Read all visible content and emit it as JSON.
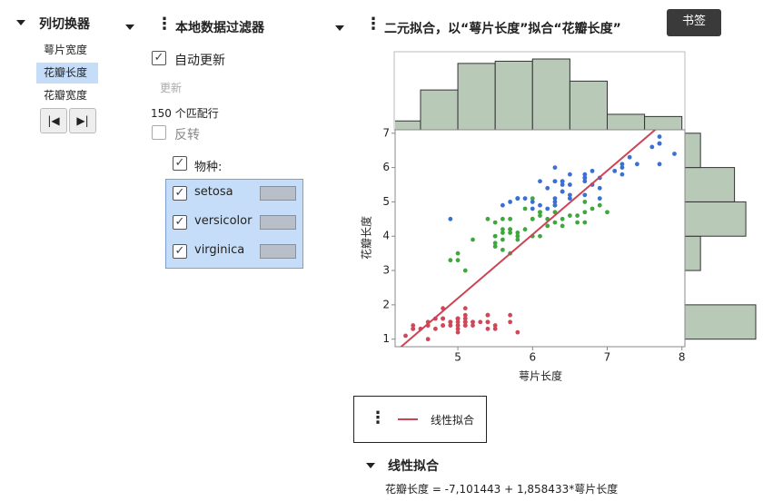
{
  "column_switcher": {
    "title": "列切换器",
    "items": [
      "萼片宽度",
      "花瓣长度",
      "花瓣宽度"
    ],
    "selected": 1
  },
  "data_filter": {
    "title": "本地数据过滤器",
    "auto_update": {
      "label": "自动更新",
      "checked": true
    },
    "update_button": "更新",
    "match_count": "150 个匹配行",
    "invert": {
      "label": "反转",
      "checked": false
    },
    "column": {
      "label": "物种:",
      "checked": true
    },
    "filter_checked": [
      true,
      true,
      true
    ]
  },
  "bookmark": "书签",
  "chart_data": {
    "type": "scatter",
    "title": "二元拟合，以“萼片长度”拟合“花瓣长度”",
    "xlabel": "萼片长度",
    "ylabel": "花瓣长度",
    "xlim": [
      4.16,
      8.04
    ],
    "ylim": [
      0.78,
      7.1
    ],
    "xticks": [
      5,
      6,
      7,
      8
    ],
    "yticks": [
      1,
      2,
      3,
      4,
      5,
      6,
      7
    ],
    "series": [
      {
        "name": "setosa",
        "color": "#d04858",
        "x": [
          5.1,
          4.9,
          4.7,
          4.6,
          5.0,
          5.4,
          4.6,
          5.0,
          4.4,
          4.9,
          5.4,
          4.8,
          4.8,
          4.3,
          5.8,
          5.7,
          5.4,
          5.1,
          5.7,
          5.1,
          5.4,
          5.1,
          4.6,
          5.1,
          4.8,
          5.0,
          5.0,
          5.2,
          5.2,
          4.7,
          4.8,
          5.4,
          5.2,
          5.5,
          4.9,
          5.0,
          5.5,
          4.9,
          4.4,
          5.1,
          5.0,
          4.5,
          4.4,
          5.0,
          5.1,
          4.8,
          5.1,
          4.6,
          5.3,
          5.0
        ],
        "y": [
          1.4,
          1.4,
          1.3,
          1.5,
          1.4,
          1.7,
          1.4,
          1.5,
          1.4,
          1.5,
          1.5,
          1.6,
          1.4,
          1.1,
          1.2,
          1.5,
          1.3,
          1.4,
          1.7,
          1.5,
          1.7,
          1.5,
          1.0,
          1.7,
          1.9,
          1.6,
          1.6,
          1.5,
          1.4,
          1.6,
          1.6,
          1.5,
          1.5,
          1.4,
          1.5,
          1.2,
          1.3,
          1.5,
          1.3,
          1.5,
          1.3,
          1.3,
          1.3,
          1.6,
          1.9,
          1.4,
          1.6,
          1.4,
          1.5,
          1.4
        ]
      },
      {
        "name": "versicolor",
        "color": "#3ea83e",
        "x": [
          7.0,
          6.4,
          6.9,
          5.5,
          6.5,
          5.7,
          6.3,
          4.9,
          6.6,
          5.2,
          5.0,
          5.9,
          6.0,
          6.1,
          5.6,
          6.7,
          5.6,
          5.8,
          6.2,
          5.6,
          5.9,
          6.1,
          6.3,
          6.1,
          6.4,
          6.6,
          6.8,
          6.7,
          6.0,
          5.7,
          5.5,
          5.5,
          5.8,
          6.0,
          5.4,
          6.0,
          6.7,
          6.3,
          5.6,
          5.5,
          5.5,
          6.1,
          5.8,
          5.0,
          5.6,
          5.7,
          5.7,
          6.2,
          5.1,
          5.7
        ],
        "y": [
          4.7,
          4.5,
          4.9,
          4.0,
          4.6,
          4.5,
          4.7,
          3.3,
          4.6,
          3.9,
          3.5,
          4.2,
          4.0,
          4.7,
          3.6,
          4.4,
          4.5,
          4.1,
          4.5,
          3.9,
          4.8,
          4.0,
          4.9,
          4.7,
          4.3,
          4.4,
          4.8,
          5.0,
          4.5,
          3.5,
          3.8,
          3.7,
          3.9,
          5.1,
          4.5,
          4.5,
          4.7,
          4.4,
          4.1,
          4.0,
          4.4,
          4.6,
          4.0,
          3.3,
          4.2,
          4.2,
          4.2,
          4.3,
          3.0,
          4.1
        ]
      },
      {
        "name": "virginica",
        "color": "#3a6fd4",
        "x": [
          6.3,
          5.8,
          7.1,
          6.3,
          6.5,
          7.6,
          4.9,
          7.3,
          6.7,
          7.2,
          6.5,
          6.4,
          6.8,
          5.7,
          5.8,
          6.4,
          6.5,
          7.7,
          7.7,
          6.0,
          6.9,
          5.6,
          7.7,
          6.3,
          6.7,
          7.2,
          6.2,
          6.1,
          6.4,
          7.2,
          7.4,
          7.9,
          6.4,
          6.3,
          6.1,
          7.7,
          6.3,
          6.4,
          6.0,
          6.9,
          6.7,
          6.9,
          5.8,
          6.8,
          6.7,
          6.7,
          6.3,
          6.5,
          6.2,
          5.9
        ],
        "y": [
          6.0,
          5.1,
          5.9,
          5.6,
          5.8,
          6.6,
          4.5,
          6.3,
          5.8,
          6.1,
          5.1,
          5.3,
          5.5,
          5.0,
          5.1,
          5.3,
          5.5,
          6.7,
          6.9,
          5.0,
          5.7,
          4.9,
          6.7,
          4.9,
          5.7,
          6.0,
          4.8,
          4.9,
          5.6,
          5.8,
          6.1,
          6.4,
          5.6,
          5.1,
          5.6,
          6.1,
          5.6,
          5.5,
          4.8,
          5.4,
          5.6,
          5.1,
          5.1,
          5.9,
          5.7,
          5.2,
          5.0,
          5.2,
          5.4,
          5.1
        ]
      }
    ],
    "top_histogram": {
      "color": "#b8c9b8",
      "bins": [
        4,
        4.5,
        5,
        5.5,
        6,
        6.5,
        7,
        7.5,
        8
      ],
      "counts": [
        4,
        18,
        30,
        31,
        32,
        22,
        7,
        6
      ]
    },
    "right_histogram": {
      "color": "#b8c9b8",
      "bins": [
        1,
        2,
        3,
        4,
        5,
        6,
        7
      ],
      "counts": [
        50,
        0,
        11,
        43,
        35,
        11
      ]
    },
    "fit": {
      "name": "线性拟合",
      "color": "#cc4455",
      "intercept": -7.101443,
      "slope": 1.858433,
      "section_title": "线性拟合",
      "equation": "花瓣长度 = -7,101443 + 1,858433*萼片长度"
    }
  }
}
